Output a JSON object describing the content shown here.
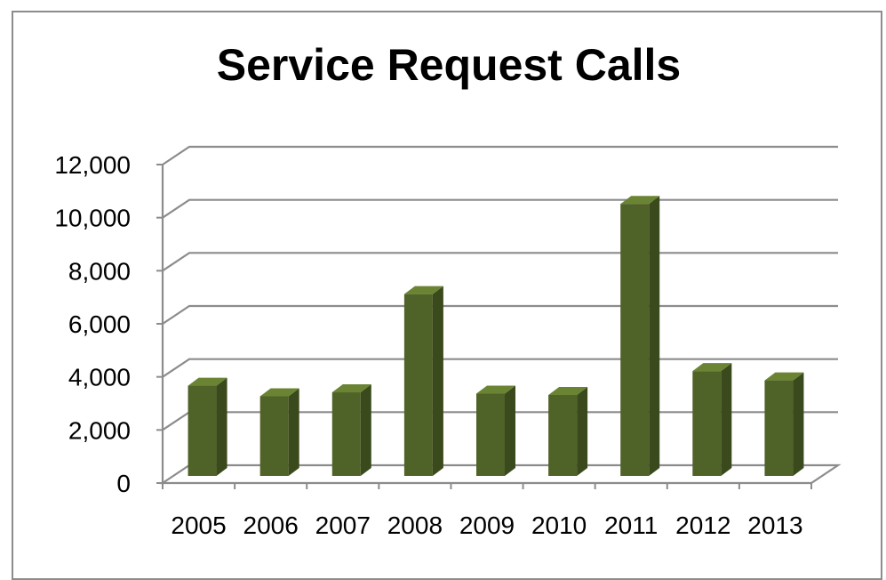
{
  "chart_data": {
    "type": "bar",
    "title": "Service Request Calls",
    "categories": [
      "2005",
      "2006",
      "2007",
      "2008",
      "2009",
      "2010",
      "2011",
      "2012",
      "2013"
    ],
    "values": [
      3400,
      3000,
      3150,
      6850,
      3100,
      3050,
      10250,
      3950,
      3600
    ],
    "ylim": [
      0,
      12000
    ],
    "yticks": [
      "0",
      "2,000",
      "4,000",
      "6,000",
      "8,000",
      "10,000",
      "12,000"
    ],
    "ytick_values": [
      0,
      2000,
      4000,
      6000,
      8000,
      10000,
      12000
    ],
    "grid": true,
    "legend": "none",
    "style": "3d-column",
    "colors": {
      "bar_front": "#4f6228",
      "bar_side": "#3a4a1c",
      "bar_top": "#6b8434",
      "grid": "#8c8c8c"
    }
  }
}
